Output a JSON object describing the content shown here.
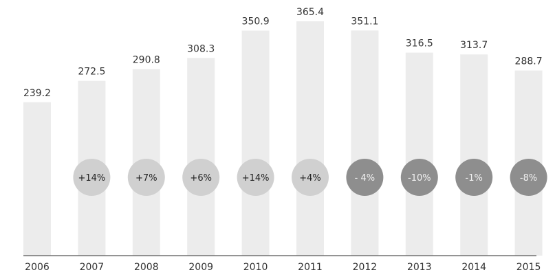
{
  "chart_data": {
    "type": "bar",
    "title": "",
    "xlabel": "",
    "ylabel": "",
    "categories": [
      "2006",
      "2007",
      "2008",
      "2009",
      "2010",
      "2011",
      "2012",
      "2013",
      "2014",
      "2015"
    ],
    "values": [
      239.2,
      272.5,
      290.8,
      308.3,
      350.9,
      365.4,
      351.1,
      316.5,
      313.7,
      288.7
    ],
    "value_labels": [
      "239.2",
      "272.5",
      "290.8",
      "308.3",
      "350.9",
      "365.4",
      "351.1",
      "316.5",
      "313.7",
      "288.7"
    ],
    "change_labels": [
      "",
      "+14%",
      "+7%",
      "+6%",
      "+14%",
      "+4%",
      "- 4%",
      "-10%",
      "-1%",
      "-8%"
    ],
    "change_direction": [
      "",
      "up",
      "up",
      "up",
      "up",
      "up",
      "down",
      "down",
      "down",
      "down"
    ],
    "ylim": [
      0,
      365.4
    ],
    "grid": false,
    "legend": "none",
    "colors": {
      "bar": "#ececec",
      "baseline": "#555555",
      "text": "#333333",
      "badge_up_fill": "#d0d0d0",
      "badge_up_text": "#1f1f1f",
      "badge_down_fill": "#8e8e8e",
      "badge_down_text": "#f2f2f2"
    }
  }
}
